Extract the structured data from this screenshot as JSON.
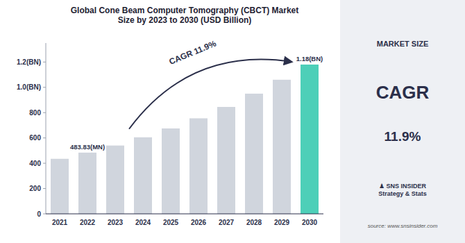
{
  "chart_data": {
    "type": "bar",
    "title": "Global Cone Beam Computer Tomography (CBCT) Market\nSize by 2023 to 2030 (USD Billion)",
    "categories": [
      "2021",
      "2022",
      "2023",
      "2024",
      "2025",
      "2026",
      "2027",
      "2028",
      "2029",
      "2030"
    ],
    "values": [
      435,
      484,
      540,
      605,
      675,
      755,
      845,
      950,
      1060,
      1180
    ],
    "colors": [
      "#d0d5dd",
      "#d0d5dd",
      "#d0d5dd",
      "#d0d5dd",
      "#d0d5dd",
      "#d0d5dd",
      "#d0d5dd",
      "#d0d5dd",
      "#d0d5dd",
      "#4dcfb8"
    ],
    "ylim": [
      0,
      1350
    ],
    "yticks": [
      0,
      200,
      400,
      600,
      800,
      {
        "value": 1000,
        "label": "1.0(BN)"
      },
      {
        "value": 1200,
        "label": "1.2(BN)"
      }
    ],
    "grid": false,
    "annotations": [
      {
        "text": "483.83(MN)",
        "category": "2022"
      },
      {
        "text": "1.18(BN)",
        "category": "2030"
      },
      {
        "text": "CAGR 11.9%"
      }
    ],
    "side_panel": [
      "MARKET SIZE",
      "CAGR",
      "11.9%",
      "♟ SNS INSIDER\nStrategy & Stats",
      "source: www.snsinsider.com"
    ]
  }
}
